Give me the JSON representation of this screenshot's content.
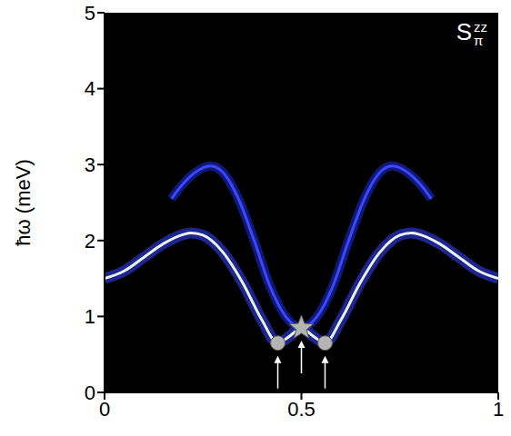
{
  "chart_data": {
    "type": "line",
    "title": "S",
    "title_sup": "zz",
    "title_sub": "π",
    "y_label": "ħω (meV)",
    "xlim": [
      0,
      1
    ],
    "xticks": [
      0,
      0.5,
      1
    ],
    "ylim": [
      0,
      5
    ],
    "yticks": [
      0,
      1,
      2,
      3,
      4,
      5
    ],
    "grid": false,
    "series": [
      {
        "type": "line",
        "color": "#eef2ff",
        "x": [
          0,
          0.05,
          0.1,
          0.15,
          0.2,
          0.22,
          0.25,
          0.3,
          0.35,
          0.4,
          0.44,
          0.47,
          0.5,
          0.53,
          0.56,
          0.6,
          0.65,
          0.7,
          0.75,
          0.78,
          0.8,
          0.85,
          0.9,
          0.95,
          1
        ],
        "values": [
          1.5,
          1.6,
          1.78,
          1.96,
          2.08,
          2.1,
          2.07,
          1.85,
          1.45,
          0.95,
          0.65,
          0.74,
          0.85,
          0.74,
          0.65,
          0.95,
          1.45,
          1.85,
          2.07,
          2.1,
          2.08,
          1.96,
          1.78,
          1.6,
          1.5
        ]
      },
      {
        "type": "line",
        "color": "#3a48ff",
        "x": [
          0.17,
          0.2,
          0.24,
          0.27,
          0.3,
          0.34,
          0.38,
          0.42,
          0.46,
          0.5,
          0.54,
          0.58,
          0.62,
          0.66,
          0.7,
          0.73,
          0.76,
          0.8,
          0.83
        ],
        "values": [
          2.55,
          2.75,
          2.93,
          2.98,
          2.9,
          2.55,
          2.0,
          1.4,
          1.0,
          0.85,
          1.0,
          1.4,
          2.0,
          2.55,
          2.9,
          2.98,
          2.93,
          2.75,
          2.55
        ]
      },
      {
        "type": "scatter",
        "marker": "circle",
        "color": "#b4b4b4",
        "x": [
          0.44,
          0.56
        ],
        "values": [
          0.65,
          0.65
        ]
      },
      {
        "type": "scatter",
        "marker": "star",
        "color": "#b4b4b4",
        "x": [
          0.5
        ],
        "values": [
          0.85
        ]
      }
    ]
  }
}
